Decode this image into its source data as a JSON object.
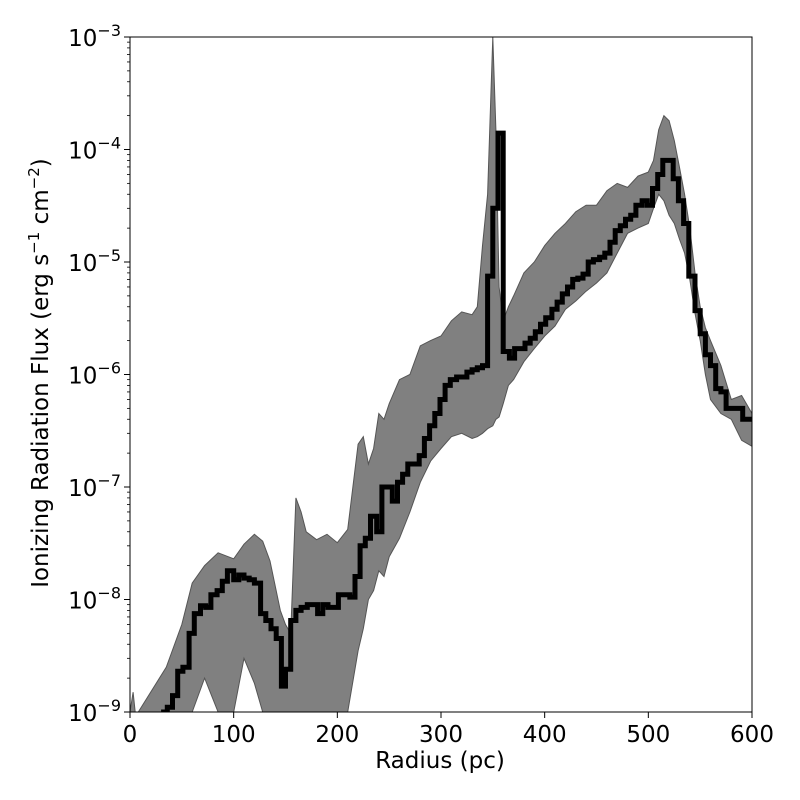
{
  "chart_data": {
    "type": "line",
    "title": "",
    "xlabel": "Radius (pc)",
    "ylabel_parts": {
      "main": "Ionizing Radiation Flux (erg s",
      "exp1": "−1",
      "mid": " cm",
      "exp2": "−2",
      "end": ")"
    },
    "xlim": [
      0,
      600
    ],
    "ylim": [
      1e-09,
      0.001
    ],
    "yscale": "log",
    "grid": false,
    "x_ticks": [
      {
        "value": 0,
        "label": "0"
      },
      {
        "value": 100,
        "label": "100"
      },
      {
        "value": 200,
        "label": "200"
      },
      {
        "value": 300,
        "label": "300"
      },
      {
        "value": 400,
        "label": "400"
      },
      {
        "value": 500,
        "label": "500"
      },
      {
        "value": 600,
        "label": "600"
      }
    ],
    "y_ticks": [
      {
        "value": 1e-09,
        "base": "10",
        "exp": "−9"
      },
      {
        "value": 1e-08,
        "base": "10",
        "exp": "−8"
      },
      {
        "value": 1e-07,
        "base": "10",
        "exp": "−7"
      },
      {
        "value": 1e-06,
        "base": "10",
        "exp": "−6"
      },
      {
        "value": 1e-05,
        "base": "10",
        "exp": "−5"
      },
      {
        "value": 0.0001,
        "base": "10",
        "exp": "−4"
      },
      {
        "value": 0.001,
        "base": "10",
        "exp": "−3"
      }
    ],
    "colors": {
      "line": "#000000",
      "band": "#808080",
      "band_edge": "#555555"
    },
    "band": {
      "x": [
        0,
        3,
        5,
        8,
        35,
        50,
        60,
        72,
        85,
        100,
        110,
        120,
        128,
        135,
        145,
        150,
        155,
        160,
        165,
        170,
        180,
        190,
        200,
        210,
        220,
        225,
        230,
        235,
        240,
        245,
        250,
        260,
        270,
        280,
        290,
        300,
        310,
        320,
        330,
        335,
        340,
        345,
        350,
        353,
        356,
        360,
        365,
        370,
        380,
        390,
        400,
        410,
        420,
        430,
        440,
        450,
        460,
        470,
        480,
        490,
        500,
        505,
        510,
        515,
        520,
        525,
        530,
        535,
        540,
        545,
        550,
        555,
        560,
        570,
        580,
        590,
        600
      ],
      "upper": [
        1e-09,
        1.5e-09,
        1e-09,
        1e-09,
        2.5e-09,
        6e-09,
        1.4e-08,
        2e-08,
        2.6e-08,
        2.3e-08,
        3.1e-08,
        3.8e-08,
        3.3e-08,
        2.2e-08,
        8e-09,
        6e-09,
        5e-09,
        8e-08,
        6e-08,
        4e-08,
        3.4e-08,
        3.8e-08,
        3.2e-08,
        4.2e-08,
        2.4e-07,
        2.8e-07,
        1.6e-07,
        2.2e-07,
        4.5e-07,
        4e-07,
        5.5e-07,
        9e-07,
        1e-06,
        1.8e-06,
        2e-06,
        2.2e-06,
        3e-06,
        3.6e-06,
        3.4e-06,
        4e-06,
        1.4e-05,
        4e-05,
        0.001,
        0.00015,
        6e-06,
        3e-06,
        4e-06,
        5e-06,
        8e-06,
        1e-05,
        1.4e-05,
        1.8e-05,
        2.2e-05,
        2.8e-05,
        3.2e-05,
        3.2e-05,
        4.3e-05,
        5e-05,
        4.6e-05,
        5.8e-05,
        6.3e-05,
        8e-05,
        0.00015,
        0.0002,
        0.00018,
        0.00012,
        7e-05,
        4e-05,
        2e-05,
        8e-06,
        4e-06,
        2.6e-06,
        2e-06,
        1.2e-06,
        6e-07,
        6.5e-07,
        4.5e-07
      ],
      "lower": [
        1e-09,
        1e-09,
        1e-09,
        1e-09,
        1e-09,
        1e-09,
        1e-09,
        2e-09,
        1e-09,
        1e-09,
        3e-09,
        1.8e-09,
        1e-09,
        1e-09,
        1e-09,
        1e-09,
        1e-09,
        1e-09,
        1e-09,
        1e-09,
        1e-09,
        1e-09,
        1e-09,
        1e-09,
        3.5e-09,
        5.5e-09,
        1e-08,
        1.2e-08,
        1.8e-08,
        1.6e-08,
        2.4e-08,
        3.5e-08,
        6e-08,
        1.1e-07,
        1.7e-07,
        2.2e-07,
        2.8e-07,
        3e-07,
        2.7e-07,
        2.8e-07,
        3e-07,
        3.3e-07,
        3.5e-07,
        4e-07,
        4.2e-07,
        5.5e-07,
        8e-07,
        9e-07,
        1.3e-06,
        1.7e-06,
        2.2e-06,
        2.7e-06,
        3.8e-06,
        4.5e-06,
        5.5e-06,
        6.5e-06,
        8e-06,
        1.2e-05,
        1.8e-05,
        2e-05,
        2.2e-05,
        3e-05,
        4e-05,
        3.5e-05,
        2.6e-05,
        2.2e-05,
        1.6e-05,
        1.2e-05,
        7e-06,
        3.5e-06,
        2e-06,
        1e-06,
        6e-07,
        4.5e-07,
        4e-07,
        2.6e-07,
        2.3e-07
      ]
    },
    "series": {
      "edges": [
        30,
        36,
        41,
        46,
        51,
        57,
        62,
        68,
        73,
        78,
        84,
        89,
        94,
        100,
        105,
        110,
        115,
        120,
        126,
        131,
        136,
        141,
        146,
        150,
        155,
        160,
        165,
        171,
        176,
        181,
        186,
        191,
        196,
        201,
        206,
        212,
        217,
        222,
        227,
        232,
        238,
        243,
        248,
        253,
        258,
        263,
        268,
        274,
        279,
        284,
        289,
        294,
        299,
        304,
        309,
        315,
        320,
        325,
        330,
        335,
        340,
        345,
        350,
        355,
        360,
        366,
        371,
        376,
        381,
        386,
        391,
        396,
        401,
        407,
        412,
        417,
        422,
        427,
        432,
        437,
        442,
        447,
        453,
        458,
        463,
        468,
        473,
        478,
        483,
        488,
        494,
        499,
        504,
        509,
        514,
        519,
        524,
        529,
        534,
        539,
        545,
        550,
        555,
        560,
        565,
        570,
        575,
        580,
        586,
        591,
        596,
        600
      ],
      "values": [
        1e-09,
        1.1e-09,
        1.4e-09,
        2.3e-09,
        2.5e-09,
        5e-09,
        7.5e-09,
        8.8e-09,
        8.5e-09,
        1.1e-08,
        1.2e-08,
        1.45e-08,
        1.8e-08,
        1.5e-08,
        1.65e-08,
        1.55e-08,
        1.5e-08,
        1.4e-08,
        7.5e-09,
        6.5e-09,
        5.5e-09,
        4.5e-09,
        1.7e-09,
        2.4e-09,
        6.5e-09,
        8e-09,
        8.5e-09,
        9e-09,
        9e-09,
        7.5e-09,
        9e-09,
        8.5e-09,
        8.5e-09,
        1.1e-08,
        1.1e-08,
        1.05e-08,
        1.6e-08,
        3e-08,
        3.5e-08,
        5.5e-08,
        4e-08,
        1e-07,
        1e-07,
        7.5e-08,
        1.1e-07,
        1.3e-07,
        1.6e-07,
        1.6e-07,
        1.9e-07,
        2.7e-07,
        3.5e-07,
        4.5e-07,
        6e-07,
        8e-07,
        9e-07,
        9.5e-07,
        9.5e-07,
        1.05e-06,
        1.1e-06,
        1.15e-06,
        1.2e-06,
        7.5e-06,
        3e-05,
        0.00014,
        1.6e-06,
        1.4e-06,
        1.7e-06,
        1.7e-06,
        1.9e-06,
        2.1e-06,
        2.4e-06,
        2.8e-06,
        3.2e-06,
        3.8e-06,
        4.4e-06,
        5.2e-06,
        6e-06,
        7e-06,
        7.2e-06,
        7.8e-06,
        1e-05,
        1.05e-05,
        1.1e-05,
        1.2e-05,
        1.5e-05,
        1.9e-05,
        2.1e-05,
        2.4e-05,
        2.6e-05,
        3.2e-05,
        3.5e-05,
        3.2e-05,
        4.5e-05,
        6e-05,
        8e-05,
        8e-05,
        5.5e-05,
        3.5e-05,
        2.2e-05,
        7.5e-06,
        3.7e-06,
        2.3e-06,
        1.5e-06,
        1.2e-06,
        7.5e-07,
        7e-07,
        5e-07,
        5e-07,
        5e-07,
        4e-07,
        4e-07
      ]
    }
  }
}
